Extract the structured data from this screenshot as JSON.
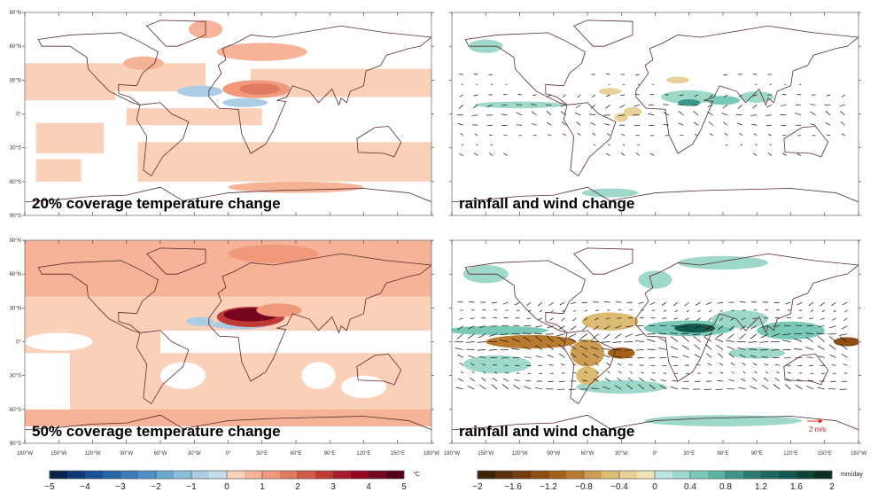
{
  "panels": [
    {
      "id": "temp20",
      "title": "20% coverage temperature change",
      "variable": "temperature"
    },
    {
      "id": "rain20",
      "title": "rainfall and wind change",
      "variable": "rainfall"
    },
    {
      "id": "temp50",
      "title": "50% coverage temperature change",
      "variable": "temperature"
    },
    {
      "id": "rain50",
      "title": "rainfall and wind change",
      "variable": "rainfall",
      "vector_reference": "2 m/s"
    }
  ],
  "lat_ticks": [
    "90°N",
    "60°N",
    "30°N",
    "0°",
    "30°S",
    "60°S",
    "90°S"
  ],
  "lon_ticks": [
    "180°W",
    "150°W",
    "120°W",
    "90°W",
    "60°W",
    "30°W",
    "0°",
    "30°E",
    "60°E",
    "90°E",
    "120°E",
    "150°E",
    "180°W"
  ],
  "colorbars": {
    "temperature": {
      "unit": "°C",
      "ticks": [
        "−5",
        "−4",
        "−3",
        "−2",
        "−1",
        "0",
        "1",
        "2",
        "3",
        "4",
        "5"
      ],
      "range": [
        -5,
        5
      ],
      "colors": [
        "#08214a",
        "#0d3a75",
        "#1b4f94",
        "#2765a8",
        "#3a7bb8",
        "#4d91c4",
        "#6aa8d0",
        "#8ebcdb",
        "#aacde3",
        "#c7dcea",
        "#fbd0b9",
        "#f6b398",
        "#f09a7b",
        "#e07a60",
        "#d25a48",
        "#c03a35",
        "#a81c2b",
        "#930522",
        "#760620",
        "#55001a"
      ]
    },
    "rainfall": {
      "unit": "mm/day",
      "ticks": [
        "−2",
        "−1.6",
        "−1.2",
        "−0.8",
        "−0.4",
        "0",
        "0.4",
        "0.8",
        "1.2",
        "1.6",
        "2"
      ],
      "range": [
        -2,
        2
      ],
      "colors": [
        "#3d2408",
        "#5a300c",
        "#723c0c",
        "#8c4e12",
        "#a2601a",
        "#b87a2e",
        "#cc9c52",
        "#dcbb72",
        "#e8d098",
        "#f3e2b6",
        "#bfe6de",
        "#9dd8cb",
        "#7ac8b8",
        "#5ab2a2",
        "#3d968a",
        "#2a7c72",
        "#1c6860",
        "#125650",
        "#0e4338",
        "#0a3026"
      ]
    }
  },
  "colors": {
    "coast": "#5a2a2a",
    "vector_reference": "#e8221c"
  }
}
